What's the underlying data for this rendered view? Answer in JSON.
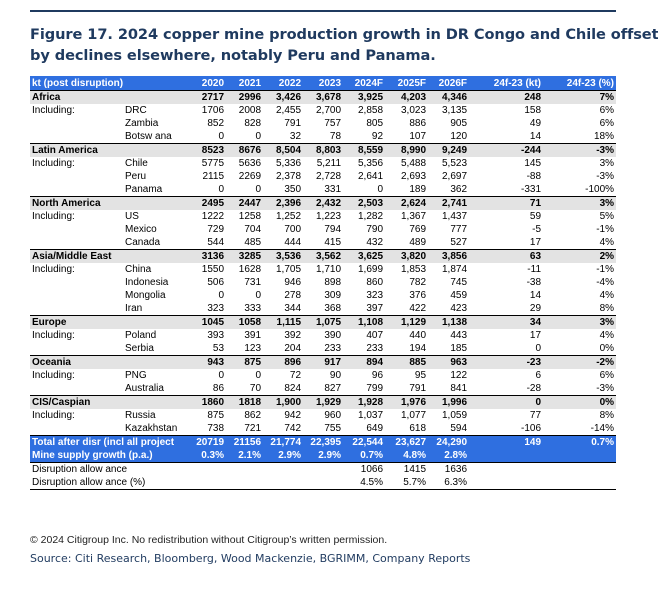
{
  "title_line1": "Figure 17. 2024 copper mine production growth in DR Congo and Chile offset",
  "title_line2": "by declines elsewhere, notably Peru and Panama.",
  "header": [
    "kt (post disruption)",
    "2020",
    "2021",
    "2022",
    "2023",
    "2024F",
    "2025F",
    "2026F",
    "24f-23 (kt)",
    "24f-23 (%)"
  ],
  "regions": [
    {
      "name": "Africa",
      "values": [
        "2717",
        "2996",
        "3,426",
        "3,678",
        "3,925",
        "4,203",
        "4,346",
        "248",
        "7%"
      ],
      "countries": [
        {
          "label": "Including:",
          "name": "DRC",
          "values": [
            "1706",
            "2008",
            "2,455",
            "2,700",
            "2,858",
            "3,023",
            "3,135",
            "158",
            "6%"
          ]
        },
        {
          "label": "",
          "name": "Zambia",
          "values": [
            "852",
            "828",
            "791",
            "757",
            "805",
            "886",
            "905",
            "49",
            "6%"
          ]
        },
        {
          "label": "",
          "name": "Botsw ana",
          "values": [
            "0",
            "0",
            "32",
            "78",
            "92",
            "107",
            "120",
            "14",
            "18%"
          ]
        }
      ]
    },
    {
      "name": "Latin America",
      "values": [
        "8523",
        "8676",
        "8,504",
        "8,803",
        "8,559",
        "8,990",
        "9,249",
        "-244",
        "-3%"
      ],
      "countries": [
        {
          "label": "Including:",
          "name": "Chile",
          "values": [
            "5775",
            "5636",
            "5,336",
            "5,211",
            "5,356",
            "5,488",
            "5,523",
            "145",
            "3%"
          ]
        },
        {
          "label": "",
          "name": "Peru",
          "values": [
            "2115",
            "2269",
            "2,378",
            "2,728",
            "2,641",
            "2,693",
            "2,697",
            "-88",
            "-3%"
          ]
        },
        {
          "label": "",
          "name": "Panama",
          "values": [
            "0",
            "0",
            "350",
            "331",
            "0",
            "189",
            "362",
            "-331",
            "-100%"
          ]
        }
      ]
    },
    {
      "name": "North America",
      "values": [
        "2495",
        "2447",
        "2,396",
        "2,432",
        "2,503",
        "2,624",
        "2,741",
        "71",
        "3%"
      ],
      "countries": [
        {
          "label": "Including:",
          "name": "US",
          "values": [
            "1222",
            "1258",
            "1,252",
            "1,223",
            "1,282",
            "1,367",
            "1,437",
            "59",
            "5%"
          ]
        },
        {
          "label": "",
          "name": "Mexico",
          "values": [
            "729",
            "704",
            "700",
            "794",
            "790",
            "769",
            "777",
            "-5",
            "-1%"
          ]
        },
        {
          "label": "",
          "name": "Canada",
          "values": [
            "544",
            "485",
            "444",
            "415",
            "432",
            "489",
            "527",
            "17",
            "4%"
          ]
        }
      ]
    },
    {
      "name": "Asia/Middle East",
      "values": [
        "3136",
        "3285",
        "3,536",
        "3,562",
        "3,625",
        "3,820",
        "3,856",
        "63",
        "2%"
      ],
      "countries": [
        {
          "label": "Including:",
          "name": "China",
          "values": [
            "1550",
            "1628",
            "1,705",
            "1,710",
            "1,699",
            "1,853",
            "1,874",
            "-11",
            "-1%"
          ]
        },
        {
          "label": "",
          "name": "Indonesia",
          "values": [
            "506",
            "731",
            "946",
            "898",
            "860",
            "782",
            "745",
            "-38",
            "-4%"
          ]
        },
        {
          "label": "",
          "name": "Mongolia",
          "values": [
            "0",
            "0",
            "278",
            "309",
            "323",
            "376",
            "459",
            "14",
            "4%"
          ]
        },
        {
          "label": "",
          "name": "Iran",
          "values": [
            "323",
            "333",
            "344",
            "368",
            "397",
            "422",
            "423",
            "29",
            "8%"
          ]
        }
      ]
    },
    {
      "name": "Europe",
      "values": [
        "1045",
        "1058",
        "1,115",
        "1,075",
        "1,108",
        "1,129",
        "1,138",
        "34",
        "3%"
      ],
      "countries": [
        {
          "label": "Including:",
          "name": "Poland",
          "values": [
            "393",
            "391",
            "392",
            "390",
            "407",
            "440",
            "443",
            "17",
            "4%"
          ]
        },
        {
          "label": "",
          "name": "Serbia",
          "values": [
            "53",
            "123",
            "204",
            "233",
            "233",
            "194",
            "185",
            "0",
            "0%"
          ]
        }
      ]
    },
    {
      "name": "Oceania",
      "values": [
        "943",
        "875",
        "896",
        "917",
        "894",
        "885",
        "963",
        "-23",
        "-2%"
      ],
      "countries": [
        {
          "label": "Including:",
          "name": "PNG",
          "values": [
            "0",
            "0",
            "72",
            "90",
            "96",
            "95",
            "122",
            "6",
            "6%"
          ]
        },
        {
          "label": "",
          "name": "Australia",
          "values": [
            "86",
            "70",
            "824",
            "827",
            "799",
            "791",
            "841",
            "-28",
            "-3%"
          ]
        }
      ]
    },
    {
      "name": "CIS/Caspian",
      "values": [
        "1860",
        "1818",
        "1,900",
        "1,929",
        "1,928",
        "1,976",
        "1,996",
        "0",
        "0%"
      ],
      "countries": [
        {
          "label": "Including:",
          "name": "Russia",
          "values": [
            "875",
            "862",
            "942",
            "960",
            "1,037",
            "1,077",
            "1,059",
            "77",
            "8%"
          ]
        },
        {
          "label": "",
          "name": "Kazakhstan",
          "values": [
            "738",
            "721",
            "742",
            "755",
            "649",
            "618",
            "594",
            "-106",
            "-14%"
          ]
        }
      ]
    }
  ],
  "total": {
    "name": "Total after disr (incl all project",
    "values": [
      "20719",
      "21156",
      "21,774",
      "22,395",
      "22,544",
      "23,627",
      "24,290",
      "149",
      "0.7%"
    ]
  },
  "growth": {
    "name": "Mine supply growth (p.a.)",
    "values": [
      "0.3%",
      "2.1%",
      "2.9%",
      "2.9%",
      "0.7%",
      "4.8%",
      "2.8%",
      "",
      ""
    ]
  },
  "disruption": {
    "name": "Disruption allow ance",
    "values": [
      "",
      "",
      "",
      "",
      "1066",
      "1415",
      "1636",
      "",
      ""
    ]
  },
  "disruption_pct": {
    "name": "Disruption allow ance (%)",
    "values": [
      "",
      "",
      "",
      "",
      "4.5%",
      "5.7%",
      "6.3%",
      "",
      ""
    ]
  },
  "copyright": "© 2024 Citigroup Inc. No redistribution without Citigroup’s written permission.",
  "source": "Source: Citi Research, Bloomberg, Wood Mackenzie, BGRIMM, Company Reports",
  "colors": {
    "header_blue": "#2f6fe0",
    "title_navy": "#1f3a5f",
    "region_grey": "#e3e3e3"
  }
}
